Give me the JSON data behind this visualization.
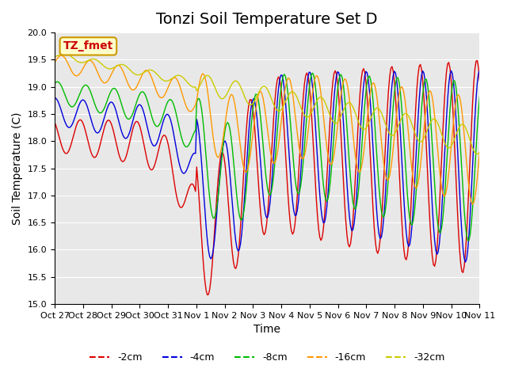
{
  "title": "Tonzi Soil Temperature Set D",
  "ylabel": "Soil Temperature (C)",
  "xlabel": "Time",
  "ylim": [
    15.0,
    20.0
  ],
  "yticks": [
    15.0,
    15.5,
    16.0,
    16.5,
    17.0,
    17.5,
    18.0,
    18.5,
    19.0,
    19.5,
    20.0
  ],
  "xtick_labels": [
    "Oct 27",
    "Oct 28",
    "Oct 29",
    "Oct 30",
    "Oct 31",
    "Nov 1",
    "Nov 2",
    "Nov 3",
    "Nov 4",
    "Nov 5",
    "Nov 6",
    "Nov 7",
    "Nov 8",
    "Nov 9",
    "Nov 10",
    "Nov 11"
  ],
  "legend_labels": [
    "-2cm",
    "-4cm",
    "-8cm",
    "-16cm",
    "-32cm"
  ],
  "legend_colors": [
    "#dd0000",
    "#0000dd",
    "#00bb00",
    "#ff9900",
    "#cccc00"
  ],
  "annotation_text": "TZ_fmet",
  "annotation_bg": "#ffffcc",
  "annotation_border": "#cc9900",
  "plot_bg": "#e8e8e8",
  "title_fontsize": 14,
  "label_fontsize": 10,
  "tick_fontsize": 8
}
